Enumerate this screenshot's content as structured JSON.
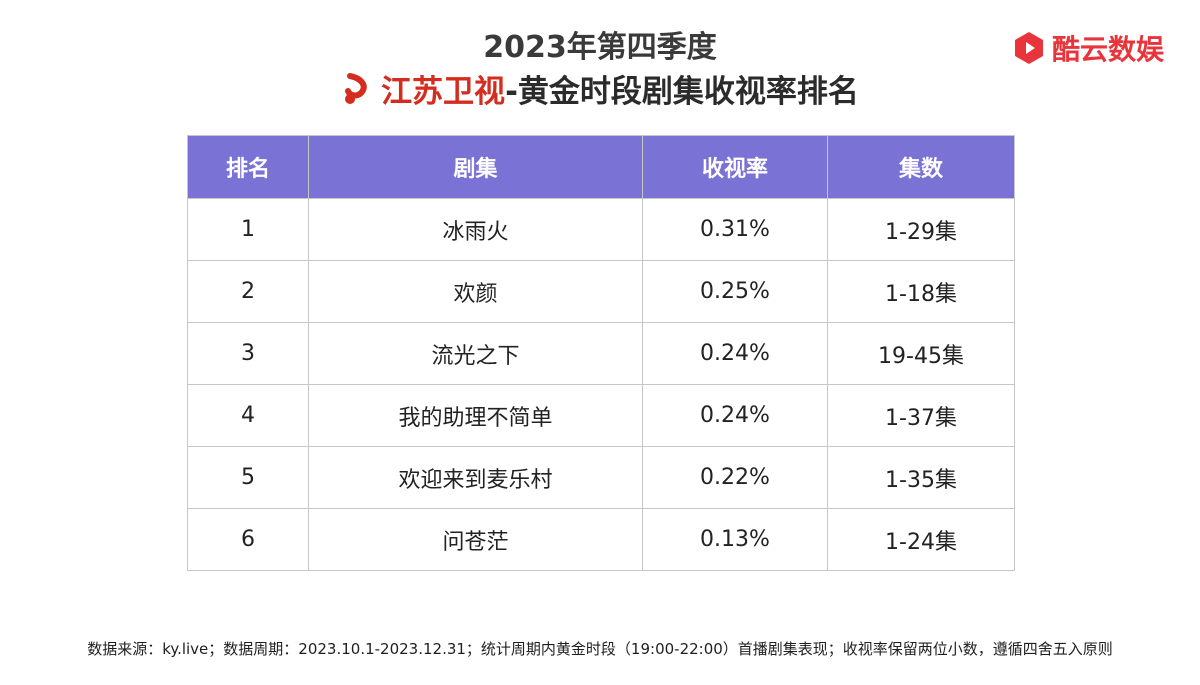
{
  "header": {
    "title_line1": "2023年第四季度",
    "station_name": "江苏卫视",
    "title_rest": "-黄金时段剧集收视率排名",
    "station_logo": "jsws-logo-icon"
  },
  "brand": {
    "name": "酷云数娱",
    "icon": "kuyun-logo-icon",
    "color": "#e8343a"
  },
  "colors": {
    "header_bg": "#7b72d6",
    "station_red": "#d42c1f"
  },
  "chart_data": {
    "type": "table",
    "columns": [
      "排名",
      "剧集",
      "收视率",
      "集数"
    ],
    "rows": [
      [
        "1",
        "冰雨火",
        "0.31%",
        "1-29集"
      ],
      [
        "2",
        "欢颜",
        "0.25%",
        "1-18集"
      ],
      [
        "3",
        "流光之下",
        "0.24%",
        "19-45集"
      ],
      [
        "4",
        "我的助理不简单",
        "0.24%",
        "1-37集"
      ],
      [
        "5",
        "欢迎来到麦乐村",
        "0.22%",
        "1-35集"
      ],
      [
        "6",
        "问苍茫",
        "0.13%",
        "1-24集"
      ]
    ]
  },
  "footnote": "数据来源：ky.live；数据周期：2023.10.1-2023.12.31；统计周期内黄金时段（19:00-22:00）首播剧集表现；收视率保留两位小数，遵循四舍五入原则"
}
